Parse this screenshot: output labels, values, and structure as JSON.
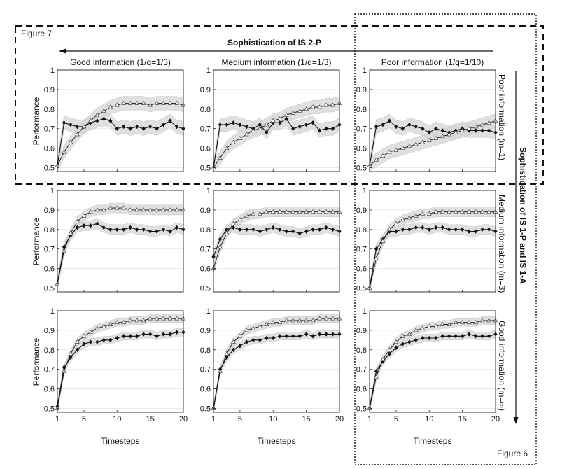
{
  "figure_labels": {
    "fig7": "Figure 7",
    "fig6": "Figure 6"
  },
  "top_banner": "Sophistication of IS 2-P",
  "side_banner": "Sophistication of IS 1-P and IS 1-A",
  "col_titles": [
    "Good information (1/q=1/3)",
    "Medium information (1/q=1/3)",
    "Poor information (1/q=1/10)"
  ],
  "row_titles": [
    "Poor information (m=1)",
    "Medium information (m=3)",
    "Good information (m=∞)"
  ],
  "ylabel": "Performance",
  "xlabel": "Timesteps",
  "colors": {
    "line": "#111111",
    "band": "#d6d6d6",
    "grid": "#e6e6e6",
    "frame": "#222222"
  },
  "chart_data": [
    {
      "type": "line",
      "row": 0,
      "col": 0,
      "xlim": [
        1,
        20
      ],
      "ylim": [
        0.48,
        1
      ],
      "yticks": [
        0.5,
        0.6,
        0.7,
        0.8,
        0.9,
        1
      ],
      "yticklabels": [
        "0.5",
        "0.6",
        "0.7",
        "0.8",
        "0.9",
        "1"
      ],
      "xticks": [
        1,
        5,
        10,
        15,
        20
      ],
      "xticklabels": [
        "1",
        "5",
        "10",
        "15",
        "20"
      ],
      "band": 0.035,
      "series": [
        {
          "name": "filled",
          "marker": "diamond",
          "values": [
            0.51,
            0.73,
            0.72,
            0.71,
            0.71,
            0.73,
            0.74,
            0.75,
            0.74,
            0.7,
            0.71,
            0.7,
            0.71,
            0.7,
            0.71,
            0.7,
            0.72,
            0.74,
            0.71,
            0.7
          ]
        },
        {
          "name": "hollow",
          "marker": "triangle",
          "values": [
            0.51,
            0.58,
            0.63,
            0.67,
            0.71,
            0.74,
            0.77,
            0.79,
            0.81,
            0.82,
            0.83,
            0.83,
            0.83,
            0.83,
            0.82,
            0.83,
            0.83,
            0.83,
            0.83,
            0.82
          ]
        }
      ]
    },
    {
      "type": "line",
      "row": 0,
      "col": 1,
      "xlim": [
        1,
        20
      ],
      "ylim": [
        0.48,
        1
      ],
      "yticks": [
        0.5,
        0.6,
        0.7,
        0.8,
        0.9,
        1
      ],
      "yticklabels": [
        "0.5",
        "0.6",
        "0.7",
        "0.8",
        "0.9",
        "1"
      ],
      "xticks": [
        1,
        5,
        10,
        15,
        20
      ],
      "xticklabels": [
        "1",
        "5",
        "10",
        "15",
        "20"
      ],
      "band": 0.035,
      "series": [
        {
          "name": "filled",
          "marker": "diamond",
          "values": [
            0.5,
            0.72,
            0.72,
            0.73,
            0.72,
            0.71,
            0.7,
            0.72,
            0.68,
            0.73,
            0.73,
            0.75,
            0.7,
            0.71,
            0.72,
            0.73,
            0.69,
            0.7,
            0.7,
            0.72
          ]
        },
        {
          "name": "hollow",
          "marker": "triangle",
          "values": [
            0.5,
            0.55,
            0.6,
            0.63,
            0.65,
            0.67,
            0.69,
            0.7,
            0.72,
            0.74,
            0.75,
            0.77,
            0.78,
            0.79,
            0.8,
            0.81,
            0.81,
            0.82,
            0.82,
            0.83
          ]
        }
      ]
    },
    {
      "type": "line",
      "row": 0,
      "col": 2,
      "xlim": [
        1,
        20
      ],
      "ylim": [
        0.48,
        1
      ],
      "yticks": [
        0.5,
        0.6,
        0.7,
        0.8,
        0.9,
        1
      ],
      "yticklabels": [
        "0.5",
        "0.6",
        "0.7",
        "0.8",
        "0.9",
        "1"
      ],
      "xticks": [
        1,
        5,
        10,
        15,
        20
      ],
      "xticklabels": [
        "1",
        "5",
        "10",
        "15",
        "20"
      ],
      "band": 0.035,
      "series": [
        {
          "name": "filled",
          "marker": "diamond",
          "values": [
            0.51,
            0.71,
            0.72,
            0.74,
            0.71,
            0.7,
            0.72,
            0.71,
            0.7,
            0.68,
            0.7,
            0.69,
            0.68,
            0.69,
            0.7,
            0.69,
            0.69,
            0.69,
            0.69,
            0.68
          ]
        },
        {
          "name": "hollow",
          "marker": "triangle",
          "values": [
            0.51,
            0.54,
            0.56,
            0.58,
            0.59,
            0.6,
            0.61,
            0.62,
            0.63,
            0.64,
            0.65,
            0.66,
            0.67,
            0.68,
            0.69,
            0.7,
            0.71,
            0.72,
            0.73,
            0.74
          ]
        }
      ]
    },
    {
      "type": "line",
      "row": 1,
      "col": 0,
      "xlim": [
        1,
        20
      ],
      "ylim": [
        0.48,
        1
      ],
      "yticks": [
        0.5,
        0.6,
        0.7,
        0.8,
        0.9,
        1
      ],
      "yticklabels": [
        "0.5",
        "0.6",
        "0.7",
        "0.8",
        "0.9",
        "1"
      ],
      "xticks": [
        1,
        5,
        10,
        15,
        20
      ],
      "xticklabels": [
        "1",
        "5",
        "10",
        "15",
        "20"
      ],
      "band": 0.025,
      "series": [
        {
          "name": "filled",
          "marker": "diamond",
          "values": [
            0.52,
            0.71,
            0.77,
            0.81,
            0.82,
            0.82,
            0.83,
            0.81,
            0.8,
            0.8,
            0.8,
            0.81,
            0.8,
            0.8,
            0.79,
            0.79,
            0.8,
            0.79,
            0.81,
            0.8
          ]
        },
        {
          "name": "hollow",
          "marker": "triangle",
          "values": [
            0.52,
            0.69,
            0.78,
            0.84,
            0.87,
            0.89,
            0.9,
            0.9,
            0.91,
            0.91,
            0.91,
            0.9,
            0.9,
            0.9,
            0.9,
            0.9,
            0.9,
            0.9,
            0.9,
            0.9
          ]
        }
      ]
    },
    {
      "type": "line",
      "row": 1,
      "col": 1,
      "xlim": [
        1,
        20
      ],
      "ylim": [
        0.48,
        1
      ],
      "yticks": [
        0.5,
        0.6,
        0.7,
        0.8,
        0.9,
        1
      ],
      "yticklabels": [
        "0.5",
        "0.6",
        "0.7",
        "0.8",
        "0.9",
        "1"
      ],
      "xticks": [
        1,
        5,
        10,
        15,
        20
      ],
      "xticklabels": [
        "1",
        "5",
        "10",
        "15",
        "20"
      ],
      "band": 0.025,
      "series": [
        {
          "name": "filled",
          "marker": "diamond",
          "values": [
            0.66,
            0.75,
            0.8,
            0.81,
            0.8,
            0.8,
            0.8,
            0.79,
            0.8,
            0.81,
            0.8,
            0.79,
            0.79,
            0.78,
            0.79,
            0.8,
            0.8,
            0.81,
            0.8,
            0.79
          ]
        },
        {
          "name": "hollow",
          "marker": "triangle",
          "values": [
            0.6,
            0.71,
            0.78,
            0.83,
            0.85,
            0.87,
            0.88,
            0.88,
            0.89,
            0.89,
            0.89,
            0.89,
            0.89,
            0.89,
            0.89,
            0.89,
            0.89,
            0.89,
            0.89,
            0.89
          ]
        }
      ]
    },
    {
      "type": "line",
      "row": 1,
      "col": 2,
      "xlim": [
        1,
        20
      ],
      "ylim": [
        0.48,
        1
      ],
      "yticks": [
        0.5,
        0.6,
        0.7,
        0.8,
        0.9,
        1
      ],
      "yticklabels": [
        "0.5",
        "0.6",
        "0.7",
        "0.8",
        "0.9",
        "1"
      ],
      "xticks": [
        1,
        5,
        10,
        15,
        20
      ],
      "xticklabels": [
        "1",
        "5",
        "10",
        "15",
        "20"
      ],
      "band": 0.025,
      "series": [
        {
          "name": "filled",
          "marker": "diamond",
          "values": [
            0.5,
            0.7,
            0.75,
            0.79,
            0.79,
            0.8,
            0.8,
            0.81,
            0.81,
            0.8,
            0.81,
            0.81,
            0.8,
            0.8,
            0.8,
            0.79,
            0.79,
            0.8,
            0.8,
            0.79
          ]
        },
        {
          "name": "hollow",
          "marker": "triangle",
          "values": [
            0.5,
            0.65,
            0.74,
            0.8,
            0.83,
            0.85,
            0.86,
            0.87,
            0.88,
            0.88,
            0.89,
            0.89,
            0.89,
            0.89,
            0.89,
            0.89,
            0.89,
            0.89,
            0.89,
            0.89
          ]
        }
      ]
    },
    {
      "type": "line",
      "row": 2,
      "col": 0,
      "xlim": [
        1,
        20
      ],
      "ylim": [
        0.48,
        1
      ],
      "yticks": [
        0.5,
        0.6,
        0.7,
        0.8,
        0.9,
        1
      ],
      "yticklabels": [
        "0.5",
        "0.6",
        "0.7",
        "0.8",
        "0.9",
        "1"
      ],
      "xticks": [
        1,
        5,
        10,
        15,
        20
      ],
      "xticklabels": [
        "1",
        "5",
        "10",
        "15",
        "20"
      ],
      "band": 0.02,
      "series": [
        {
          "name": "filled",
          "marker": "diamond",
          "values": [
            0.51,
            0.71,
            0.76,
            0.8,
            0.83,
            0.84,
            0.84,
            0.85,
            0.85,
            0.86,
            0.87,
            0.87,
            0.87,
            0.88,
            0.88,
            0.87,
            0.88,
            0.88,
            0.89,
            0.89
          ]
        },
        {
          "name": "hollow",
          "marker": "triangle",
          "values": [
            0.5,
            0.69,
            0.78,
            0.84,
            0.87,
            0.89,
            0.91,
            0.92,
            0.93,
            0.94,
            0.94,
            0.95,
            0.95,
            0.95,
            0.96,
            0.96,
            0.96,
            0.96,
            0.96,
            0.96
          ]
        }
      ]
    },
    {
      "type": "line",
      "row": 2,
      "col": 1,
      "xlim": [
        1,
        20
      ],
      "ylim": [
        0.48,
        1
      ],
      "yticks": [
        0.5,
        0.6,
        0.7,
        0.8,
        0.9,
        1
      ],
      "yticklabels": [
        "0.5",
        "0.6",
        "0.7",
        "0.8",
        "0.9",
        "1"
      ],
      "xticks": [
        1,
        5,
        10,
        15,
        20
      ],
      "xticklabels": [
        "1",
        "5",
        "10",
        "15",
        "20"
      ],
      "band": 0.02,
      "series": [
        {
          "name": "filled",
          "marker": "diamond",
          "values": [
            0.5,
            0.7,
            0.76,
            0.8,
            0.82,
            0.84,
            0.85,
            0.85,
            0.86,
            0.86,
            0.87,
            0.87,
            0.87,
            0.87,
            0.88,
            0.87,
            0.88,
            0.88,
            0.88,
            0.88
          ]
        },
        {
          "name": "hollow",
          "marker": "triangle",
          "values": [
            0.5,
            0.69,
            0.78,
            0.84,
            0.87,
            0.9,
            0.91,
            0.92,
            0.93,
            0.94,
            0.94,
            0.95,
            0.95,
            0.95,
            0.95,
            0.95,
            0.96,
            0.96,
            0.96,
            0.96
          ]
        }
      ]
    },
    {
      "type": "line",
      "row": 2,
      "col": 2,
      "xlim": [
        1,
        20
      ],
      "ylim": [
        0.48,
        1
      ],
      "yticks": [
        0.5,
        0.6,
        0.7,
        0.8,
        0.9,
        1
      ],
      "yticklabels": [
        "0.5",
        "0.6",
        "0.7",
        "0.8",
        "0.9",
        "1"
      ],
      "xticks": [
        1,
        5,
        10,
        15,
        20
      ],
      "xticklabels": [
        "1",
        "5",
        "10",
        "15",
        "20"
      ],
      "band": 0.02,
      "series": [
        {
          "name": "filled",
          "marker": "diamond",
          "values": [
            0.5,
            0.69,
            0.74,
            0.78,
            0.81,
            0.83,
            0.84,
            0.85,
            0.86,
            0.86,
            0.86,
            0.87,
            0.87,
            0.87,
            0.87,
            0.88,
            0.87,
            0.87,
            0.87,
            0.88
          ]
        },
        {
          "name": "hollow",
          "marker": "triangle",
          "values": [
            0.5,
            0.66,
            0.75,
            0.8,
            0.84,
            0.87,
            0.88,
            0.9,
            0.91,
            0.92,
            0.92,
            0.93,
            0.93,
            0.94,
            0.94,
            0.94,
            0.94,
            0.95,
            0.95,
            0.95
          ]
        }
      ]
    }
  ]
}
